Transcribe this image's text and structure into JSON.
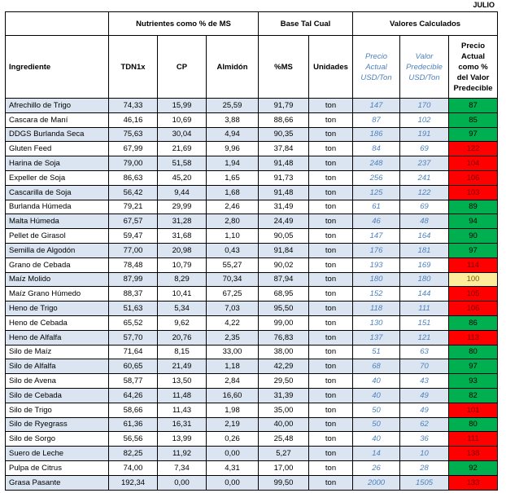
{
  "month": "JULIO",
  "groups": {
    "nutrients": "Nutrientes como % de MS",
    "base": "Base Tal Cual",
    "calc": "Valores Calculados"
  },
  "columns": {
    "ingredient": "Ingrediente",
    "tdn": "TDN1x",
    "cp": "CP",
    "starch": "Almidón",
    "ms": "%MS",
    "units": "Unidades",
    "price": "Precio Actual USD/Ton",
    "predicted": "Valor Predecible USD/Ton",
    "ratio": "Precio Actual como % del Valor Predecible"
  },
  "colors": {
    "green": "#00b050",
    "red": "#ff0000",
    "yellow": "#ffeb9c",
    "band": "#dbe5f1",
    "blue_text": "#4f81bd"
  },
  "rows": [
    {
      "name": "Afrechillo de Trigo",
      "tdn": "74,33",
      "cp": "15,99",
      "starch": "25,59",
      "ms": "91,79",
      "unit": "ton",
      "price": "147",
      "pred": "170",
      "ratio": "87",
      "status": "green"
    },
    {
      "name": "Cascara de Maní",
      "tdn": "46,16",
      "cp": "10,69",
      "starch": "3,88",
      "ms": "88,66",
      "unit": "ton",
      "price": "87",
      "pred": "102",
      "ratio": "85",
      "status": "green"
    },
    {
      "name": "DDGS Burlanda Seca",
      "tdn": "75,63",
      "cp": "30,04",
      "starch": "4,94",
      "ms": "90,35",
      "unit": "ton",
      "price": "186",
      "pred": "191",
      "ratio": "97",
      "status": "green"
    },
    {
      "name": "Gluten Feed",
      "tdn": "67,99",
      "cp": "21,69",
      "starch": "9,96",
      "ms": "37,84",
      "unit": "ton",
      "price": "84",
      "pred": "69",
      "ratio": "122",
      "status": "red"
    },
    {
      "name": "Harina de Soja",
      "tdn": "79,00",
      "cp": "51,58",
      "starch": "1,94",
      "ms": "91,48",
      "unit": "ton",
      "price": "248",
      "pred": "237",
      "ratio": "104",
      "status": "red"
    },
    {
      "name": "Expeller de Soja",
      "tdn": "86,63",
      "cp": "45,20",
      "starch": "1,65",
      "ms": "91,73",
      "unit": "ton",
      "price": "256",
      "pred": "241",
      "ratio": "106",
      "status": "red"
    },
    {
      "name": "Cascarilla de Soja",
      "tdn": "56,42",
      "cp": "9,44",
      "starch": "1,68",
      "ms": "91,48",
      "unit": "ton",
      "price": "125",
      "pred": "122",
      "ratio": "103",
      "status": "red"
    },
    {
      "name": "Burlanda Húmeda",
      "tdn": "79,21",
      "cp": "29,99",
      "starch": "2,46",
      "ms": "31,49",
      "unit": "ton",
      "price": "61",
      "pred": "69",
      "ratio": "89",
      "status": "green"
    },
    {
      "name": "Malta Húmeda",
      "tdn": "67,57",
      "cp": "31,28",
      "starch": "2,80",
      "ms": "24,49",
      "unit": "ton",
      "price": "46",
      "pred": "48",
      "ratio": "94",
      "status": "green"
    },
    {
      "name": "Pellet de Girasol",
      "tdn": "59,47",
      "cp": "31,68",
      "starch": "1,10",
      "ms": "90,05",
      "unit": "ton",
      "price": "147",
      "pred": "164",
      "ratio": "90",
      "status": "green"
    },
    {
      "name": "Semilla de Algodón",
      "tdn": "77,00",
      "cp": "20,98",
      "starch": "0,43",
      "ms": "91,84",
      "unit": "ton",
      "price": "176",
      "pred": "181",
      "ratio": "97",
      "status": "green"
    },
    {
      "name": "Grano de Cebada",
      "tdn": "78,48",
      "cp": "10,79",
      "starch": "55,27",
      "ms": "90,02",
      "unit": "ton",
      "price": "193",
      "pred": "169",
      "ratio": "114",
      "status": "red"
    },
    {
      "name": "Maíz Molido",
      "tdn": "87,99",
      "cp": "8,29",
      "starch": "70,34",
      "ms": "87,94",
      "unit": "ton",
      "price": "180",
      "pred": "180",
      "ratio": "100",
      "status": "yellow"
    },
    {
      "name": "Maíz Grano Húmedo",
      "tdn": "88,37",
      "cp": "10,41",
      "starch": "67,25",
      "ms": "68,95",
      "unit": "ton",
      "price": "152",
      "pred": "144",
      "ratio": "105",
      "status": "red"
    },
    {
      "name": "Heno de Trigo",
      "tdn": "51,63",
      "cp": "5,34",
      "starch": "7,03",
      "ms": "95,50",
      "unit": "ton",
      "price": "118",
      "pred": "111",
      "ratio": "106",
      "status": "red"
    },
    {
      "name": "Heno de Cebada",
      "tdn": "65,52",
      "cp": "9,62",
      "starch": "4,22",
      "ms": "99,00",
      "unit": "ton",
      "price": "130",
      "pred": "151",
      "ratio": "86",
      "status": "green"
    },
    {
      "name": "Heno de Alfalfa",
      "tdn": "57,70",
      "cp": "20,76",
      "starch": "2,35",
      "ms": "76,83",
      "unit": "ton",
      "price": "137",
      "pred": "121",
      "ratio": "113",
      "status": "red"
    },
    {
      "name": "Silo de Maíz",
      "tdn": "71,64",
      "cp": "8,15",
      "starch": "33,00",
      "ms": "38,00",
      "unit": "ton",
      "price": "51",
      "pred": "63",
      "ratio": "80",
      "status": "green"
    },
    {
      "name": "Silo de Alfalfa",
      "tdn": "60,65",
      "cp": "21,49",
      "starch": "1,18",
      "ms": "42,29",
      "unit": "ton",
      "price": "68",
      "pred": "70",
      "ratio": "97",
      "status": "green"
    },
    {
      "name": "Silo de Avena",
      "tdn": "58,77",
      "cp": "13,50",
      "starch": "2,84",
      "ms": "29,50",
      "unit": "ton",
      "price": "40",
      "pred": "43",
      "ratio": "93",
      "status": "green"
    },
    {
      "name": "Silo de Cebada",
      "tdn": "64,26",
      "cp": "11,48",
      "starch": "16,60",
      "ms": "31,39",
      "unit": "ton",
      "price": "40",
      "pred": "49",
      "ratio": "82",
      "status": "green"
    },
    {
      "name": "Silo de Trigo",
      "tdn": "58,66",
      "cp": "11,43",
      "starch": "1,98",
      "ms": "35,00",
      "unit": "ton",
      "price": "50",
      "pred": "49",
      "ratio": "101",
      "status": "red"
    },
    {
      "name": "Silo de Ryegrass",
      "tdn": "61,36",
      "cp": "16,31",
      "starch": "2,19",
      "ms": "40,00",
      "unit": "ton",
      "price": "50",
      "pred": "62",
      "ratio": "80",
      "status": "green"
    },
    {
      "name": "Silo de Sorgo",
      "tdn": "56,56",
      "cp": "13,99",
      "starch": "0,26",
      "ms": "25,48",
      "unit": "ton",
      "price": "40",
      "pred": "36",
      "ratio": "111",
      "status": "red"
    },
    {
      "name": "Suero de Leche",
      "tdn": "82,25",
      "cp": "11,92",
      "starch": "0,00",
      "ms": "5,27",
      "unit": "ton",
      "price": "14",
      "pred": "10",
      "ratio": "138",
      "status": "red"
    },
    {
      "name": "Pulpa de Citrus",
      "tdn": "74,00",
      "cp": "7,34",
      "starch": "4,31",
      "ms": "17,00",
      "unit": "ton",
      "price": "26",
      "pred": "28",
      "ratio": "92",
      "status": "green"
    },
    {
      "name": "Grasa Pasante",
      "tdn": "192,34",
      "cp": "0,00",
      "starch": "0,00",
      "ms": "99,50",
      "unit": "ton",
      "price": "2000",
      "pred": "1505",
      "ratio": "133",
      "status": "red"
    }
  ]
}
